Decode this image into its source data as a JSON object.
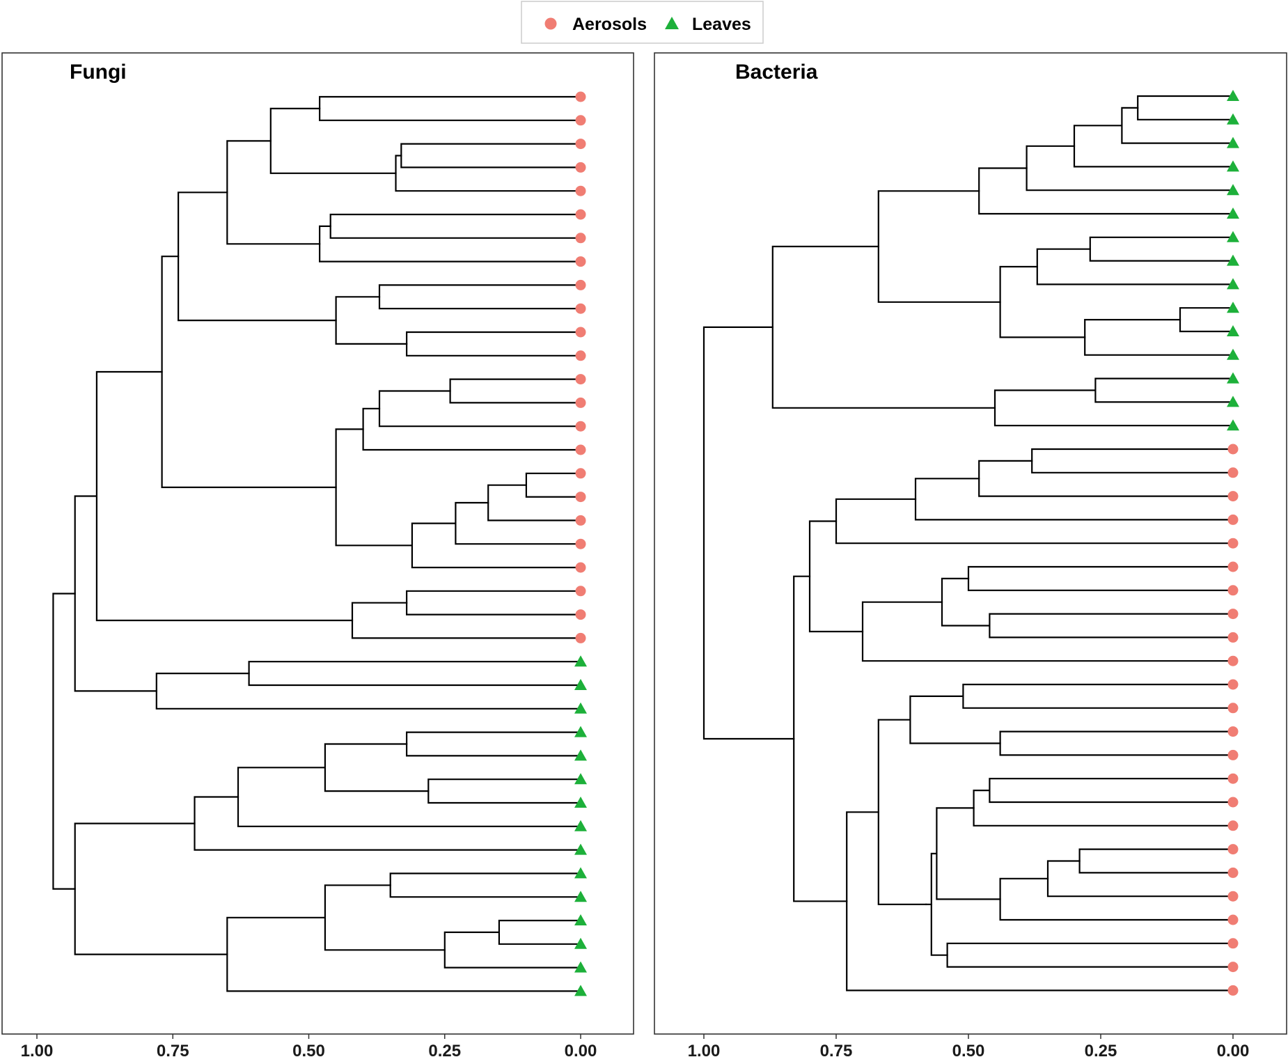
{
  "legend": {
    "items": [
      {
        "label": "Aerosols",
        "shape": "circle",
        "color": "#F07D73"
      },
      {
        "label": "Leaves",
        "shape": "triangle",
        "color": "#1DB03A"
      }
    ]
  },
  "colors": {
    "aerosols": "#F07D73",
    "leaves": "#1DB03A",
    "branch": "#000000"
  },
  "chart_data": [
    {
      "type": "dendrogram",
      "title": "Fungi",
      "xlim": [
        1.0,
        0.0
      ],
      "xticks": [
        1.0,
        0.75,
        0.5,
        0.25,
        0.0
      ],
      "xtick_labels": [
        "1.00",
        "0.75",
        "0.50",
        "0.25",
        "0.00"
      ],
      "leaves": [
        "Aerosols",
        "Aerosols",
        "Aerosols",
        "Aerosols",
        "Aerosols",
        "Aerosols",
        "Aerosols",
        "Aerosols",
        "Aerosols",
        "Aerosols",
        "Aerosols",
        "Aerosols",
        "Aerosols",
        "Aerosols",
        "Aerosols",
        "Aerosols",
        "Aerosols",
        "Aerosols",
        "Aerosols",
        "Aerosols",
        "Aerosols",
        "Aerosols",
        "Aerosols",
        "Aerosols",
        "Leaves",
        "Leaves",
        "Leaves",
        "Leaves",
        "Leaves",
        "Leaves",
        "Leaves",
        "Leaves",
        "Leaves",
        "Leaves",
        "Leaves",
        "Leaves",
        "Leaves",
        "Leaves",
        "Leaves"
      ],
      "tree": {
        "h": 0.97,
        "c": [
          {
            "h": 0.93,
            "c": [
              {
                "h": 0.89,
                "c": [
                  {
                    "h": 0.77,
                    "c": [
                      {
                        "h": 0.74,
                        "c": [
                          {
                            "h": 0.65,
                            "c": [
                              {
                                "h": 0.57,
                                "c": [
                                  {
                                    "h": 0.48,
                                    "c": [
                                      0,
                                      1
                                    ]
                                  },
                                  {
                                    "h": 0.34,
                                    "c": [
                                      {
                                        "h": 0.33,
                                        "c": [
                                          2,
                                          3
                                        ]
                                      },
                                      4
                                    ]
                                  }
                                ]
                              },
                              {
                                "h": 0.48,
                                "c": [
                                  {
                                    "h": 0.46,
                                    "c": [
                                      5,
                                      6
                                    ]
                                  },
                                  7
                                ]
                              }
                            ]
                          },
                          {
                            "h": 0.45,
                            "c": [
                              {
                                "h": 0.37,
                                "c": [
                                  8,
                                  9
                                ]
                              },
                              {
                                "h": 0.32,
                                "c": [
                                  10,
                                  11
                                ]
                              }
                            ]
                          }
                        ]
                      },
                      {
                        "h": 0.45,
                        "c": [
                          {
                            "h": 0.4,
                            "c": [
                              {
                                "h": 0.37,
                                "c": [
                                  {
                                    "h": 0.24,
                                    "c": [
                                      12,
                                      13
                                    ]
                                  },
                                  14
                                ]
                              },
                              15
                            ]
                          },
                          {
                            "h": 0.31,
                            "c": [
                              {
                                "h": 0.23,
                                "c": [
                                  {
                                    "h": 0.17,
                                    "c": [
                                      {
                                        "h": 0.1,
                                        "c": [
                                          16,
                                          17
                                        ]
                                      },
                                      18
                                    ]
                                  },
                                  19
                                ]
                              },
                              20
                            ]
                          }
                        ]
                      }
                    ]
                  },
                  {
                    "h": 0.42,
                    "c": [
                      {
                        "h": 0.32,
                        "c": [
                          21,
                          22
                        ]
                      },
                      23
                    ]
                  }
                ]
              },
              {
                "h": 0.78,
                "c": [
                  {
                    "h": 0.61,
                    "c": [
                      24,
                      25
                    ]
                  },
                  26
                ]
              }
            ]
          },
          {
            "h": 0.93,
            "c": [
              {
                "h": 0.71,
                "c": [
                  {
                    "h": 0.63,
                    "c": [
                      {
                        "h": 0.47,
                        "c": [
                          {
                            "h": 0.32,
                            "c": [
                              27,
                              28
                            ]
                          },
                          {
                            "h": 0.28,
                            "c": [
                              29,
                              30
                            ]
                          }
                        ]
                      },
                      31
                    ]
                  },
                  32
                ]
              },
              {
                "h": 0.65,
                "c": [
                  {
                    "h": 0.47,
                    "c": [
                      {
                        "h": 0.35,
                        "c": [
                          33,
                          34
                        ]
                      },
                      {
                        "h": 0.25,
                        "c": [
                          {
                            "h": 0.15,
                            "c": [
                              35,
                              36
                            ]
                          },
                          37
                        ]
                      }
                    ]
                  },
                  38
                ]
              }
            ]
          }
        ]
      }
    },
    {
      "type": "dendrogram",
      "title": "Bacteria",
      "xlim": [
        1.0,
        0.0
      ],
      "xticks": [
        1.0,
        0.75,
        0.5,
        0.25,
        0.0
      ],
      "xtick_labels": [
        "1.00",
        "0.75",
        "0.50",
        "0.25",
        "0.00"
      ],
      "leaves": [
        "Leaves",
        "Leaves",
        "Leaves",
        "Leaves",
        "Leaves",
        "Leaves",
        "Leaves",
        "Leaves",
        "Leaves",
        "Leaves",
        "Leaves",
        "Leaves",
        "Leaves",
        "Leaves",
        "Leaves",
        "Aerosols",
        "Aerosols",
        "Aerosols",
        "Aerosols",
        "Aerosols",
        "Aerosols",
        "Aerosols",
        "Aerosols",
        "Aerosols",
        "Aerosols",
        "Aerosols",
        "Aerosols",
        "Aerosols",
        "Aerosols",
        "Aerosols",
        "Aerosols",
        "Aerosols",
        "Aerosols",
        "Aerosols",
        "Aerosols",
        "Aerosols",
        "Aerosols",
        "Aerosols",
        "Aerosols"
      ],
      "tree": {
        "h": 1.0,
        "c": [
          {
            "h": 0.87,
            "c": [
              {
                "h": 0.67,
                "c": [
                  {
                    "h": 0.48,
                    "c": [
                      {
                        "h": 0.39,
                        "c": [
                          {
                            "h": 0.3,
                            "c": [
                              {
                                "h": 0.21,
                                "c": [
                                  {
                                    "h": 0.18,
                                    "c": [
                                      0,
                                      1
                                    ]
                                  },
                                  2
                                ]
                              },
                              3
                            ]
                          },
                          4
                        ]
                      },
                      5
                    ]
                  },
                  {
                    "h": 0.44,
                    "c": [
                      {
                        "h": 0.37,
                        "c": [
                          {
                            "h": 0.27,
                            "c": [
                              6,
                              7
                            ]
                          },
                          8
                        ]
                      },
                      {
                        "h": 0.28,
                        "c": [
                          {
                            "h": 0.1,
                            "c": [
                              9,
                              10
                            ]
                          },
                          11
                        ]
                      }
                    ]
                  }
                ]
              },
              {
                "h": 0.45,
                "c": [
                  {
                    "h": 0.26,
                    "c": [
                      12,
                      13
                    ]
                  },
                  14
                ]
              }
            ]
          },
          {
            "h": 0.83,
            "c": [
              {
                "h": 0.8,
                "c": [
                  {
                    "h": 0.75,
                    "c": [
                      {
                        "h": 0.6,
                        "c": [
                          {
                            "h": 0.48,
                            "c": [
                              {
                                "h": 0.38,
                                "c": [
                                  15,
                                  16
                                ]
                              },
                              17
                            ]
                          },
                          18
                        ]
                      },
                      19
                    ]
                  },
                  {
                    "h": 0.7,
                    "c": [
                      {
                        "h": 0.55,
                        "c": [
                          {
                            "h": 0.5,
                            "c": [
                              20,
                              21
                            ]
                          },
                          {
                            "h": 0.46,
                            "c": [
                              22,
                              23
                            ]
                          }
                        ]
                      },
                      24
                    ]
                  }
                ]
              },
              {
                "h": 0.73,
                "c": [
                  {
                    "h": 0.67,
                    "c": [
                      {
                        "h": 0.61,
                        "c": [
                          {
                            "h": 0.51,
                            "c": [
                              25,
                              26
                            ]
                          },
                          {
                            "h": 0.44,
                            "c": [
                              27,
                              28
                            ]
                          }
                        ]
                      },
                      {
                        "h": 0.58,
                        "c": [
                          {
                            "h": 0.57,
                            "c": [
                              {
                                "h": 0.56,
                                "c": [
                                  {
                                    "h": 0.49,
                                    "c": [
                                      {
                                        "h": 0.46,
                                        "c": [
                                          29,
                                          30
                                        ]
                                      },
                                      31
                                    ]
                                  },
                                  {
                                    "h": 0.44,
                                    "c": [
                                      {
                                        "h": 0.35,
                                        "c": [
                                          {
                                            "h": 0.29,
                                            "c": [
                                              32,
                                              33
                                            ]
                                          },
                                          34
                                        ]
                                      },
                                      35
                                    ]
                                  }
                                ]
                              },
                              {
                                "h": 0.54,
                                "c": [
                                  36,
                                  37
                                ]
                              }
                            ]
                          }
                        ]
                      }
                    ]
                  },
                  38
                ]
              }
            ]
          }
        ]
      }
    }
  ]
}
